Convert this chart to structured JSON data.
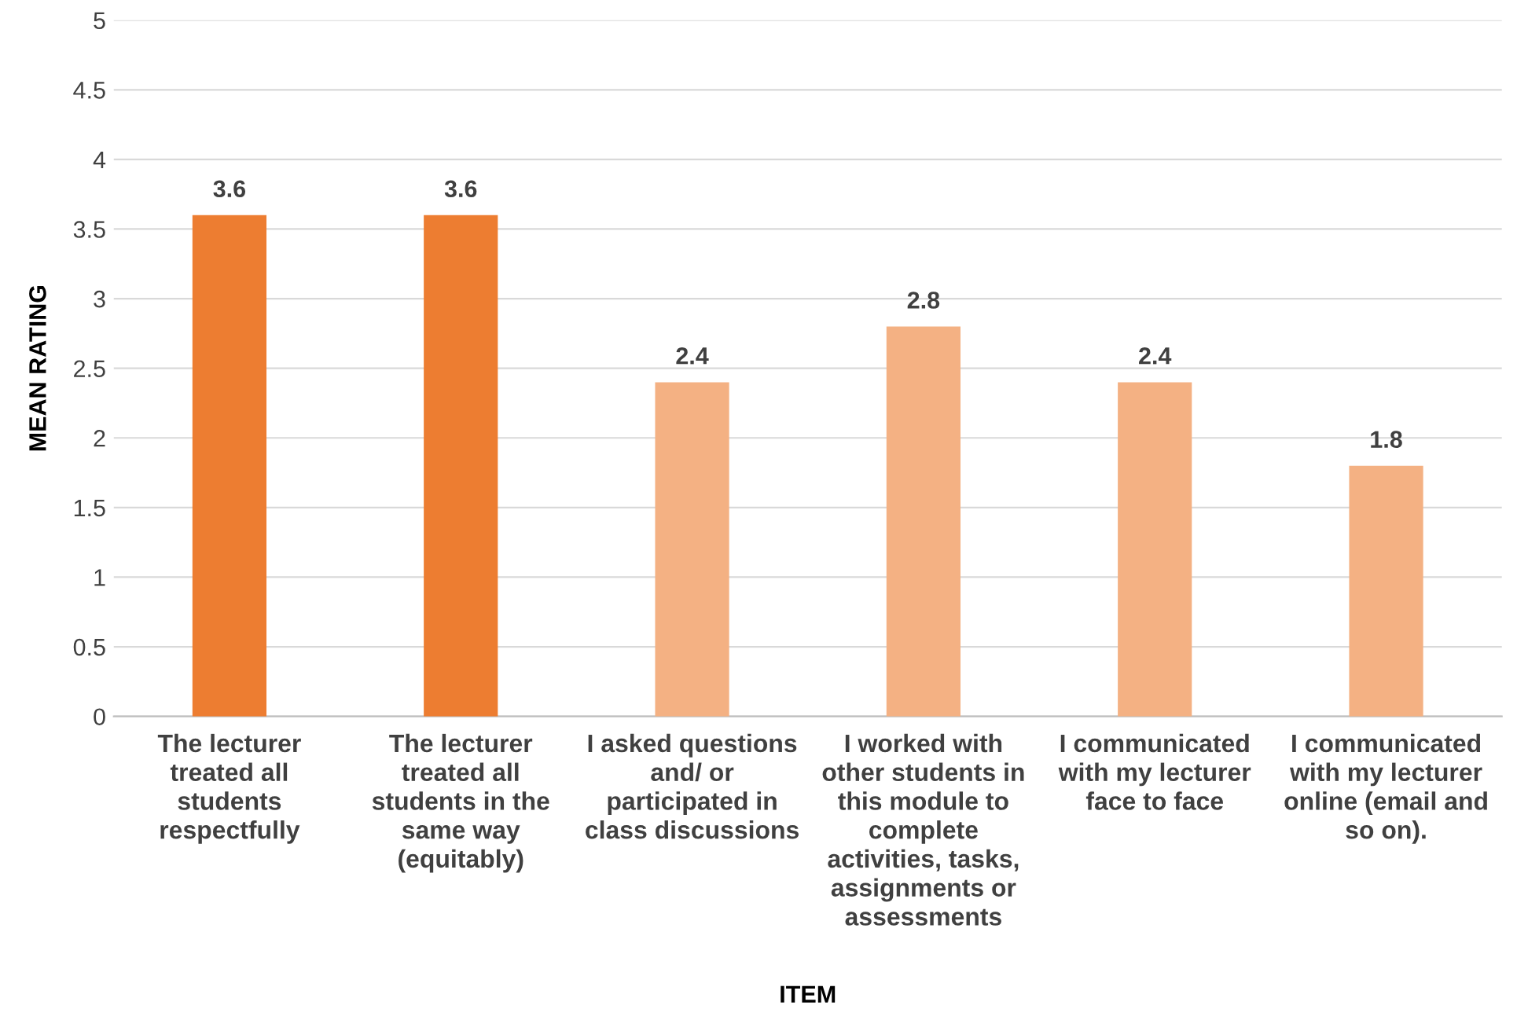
{
  "chart_data": {
    "type": "bar",
    "categories": [
      "The lecturer treated all students respectfully",
      "The lecturer treated all students in the same way (equitably)",
      "I asked questions and/ or participated in class discussions",
      "I worked with other students in this module to complete activities, tasks, assignments or assessments",
      "I communicated with my lecturer face to face",
      "I communicated with my lecturer online (email and so on)."
    ],
    "values": [
      3.6,
      3.6,
      2.4,
      2.8,
      2.4,
      1.8
    ],
    "colors": [
      "#ed7d31",
      "#ed7d31",
      "#f4b183",
      "#f4b183",
      "#f4b183",
      "#f4b183"
    ],
    "xlabel": "ITEM",
    "ylabel": "MEAN RATING",
    "ylim": [
      0,
      5
    ],
    "yticks": [
      0,
      0.5,
      1,
      1.5,
      2,
      2.5,
      3,
      3.5,
      4,
      4.5,
      5
    ],
    "grid": "y",
    "data_labels": true
  }
}
